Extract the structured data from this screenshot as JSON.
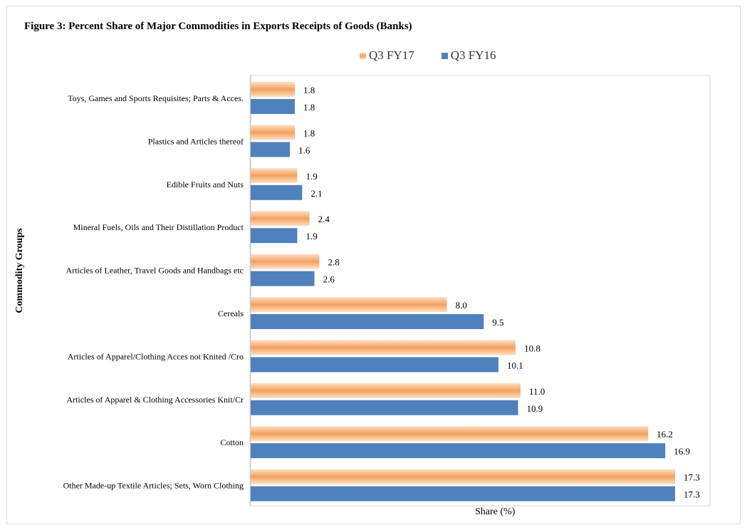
{
  "figure": {
    "title": "Figure 3: Percent Share of Major Commodities in Exports Receipts of Goods  (Banks)"
  },
  "chart_data": {
    "type": "bar",
    "orientation": "horizontal",
    "title": "Figure 3: Percent Share of Major Commodities in Exports Receipts of Goods  (Banks)",
    "xlabel": "Share (%)",
    "ylabel": "Commodity Groups",
    "xlim": [
      0,
      17.3
    ],
    "grid": false,
    "legend_position": "top",
    "categories": [
      "Toys, Games and Sports Requisites; Parts & Acces.",
      "Plastics and Articles thereof",
      "Edible Fruits and Nuts",
      "Mineral Fuels, Oils and Their Distillation Product",
      "Articles of Leather, Travel Goods and Handbags etc",
      "Cereals",
      "Articles of Apparel/Clothing Acces not Knited /Cro",
      "Articles of Apparel & Clothing Accessories Knit/Cr",
      "Cotton",
      "Other Made-up Textile Articles; Sets, Worn Clothing"
    ],
    "series": [
      {
        "name": "Q3 FY17",
        "color": "#f4a15f",
        "values": [
          1.8,
          1.8,
          1.9,
          2.4,
          2.8,
          8.0,
          10.8,
          11.0,
          16.2,
          17.3
        ],
        "labels": [
          "1.8",
          "1.8",
          "1.9",
          "2.4",
          "2.8",
          "8.0",
          "10.8",
          "11.0",
          "16.2",
          "17.3"
        ]
      },
      {
        "name": "Q3 FY16",
        "color": "#4f81bd",
        "values": [
          1.8,
          1.6,
          2.1,
          1.9,
          2.6,
          9.5,
          10.1,
          10.9,
          16.9,
          17.3
        ],
        "labels": [
          "1.8",
          "1.6",
          "2.1",
          "1.9",
          "2.6",
          "9.5",
          "10.1",
          "10.9",
          "16.9",
          "17.3"
        ]
      }
    ]
  }
}
